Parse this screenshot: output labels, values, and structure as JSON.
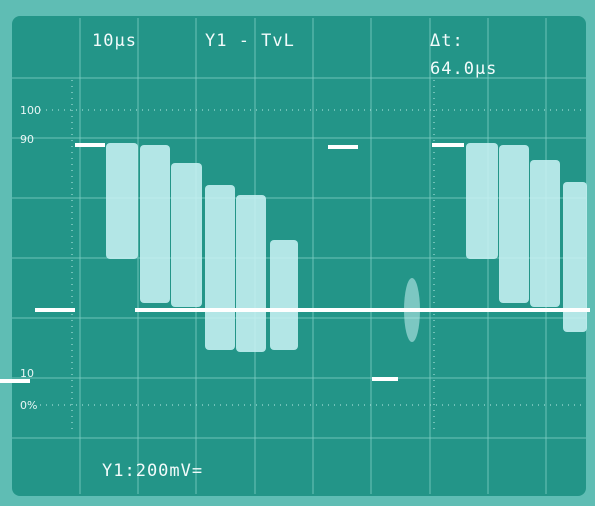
{
  "header": {
    "timebase": "10µs",
    "trigger": "Y1 - TvL",
    "delta_label": "Δt:",
    "delta_value": "64.0µs"
  },
  "scale_labels": {
    "top": "100",
    "high": "90",
    "low": "10",
    "bottom": "0%"
  },
  "footer": {
    "channel": "Y1:200mV="
  }
}
